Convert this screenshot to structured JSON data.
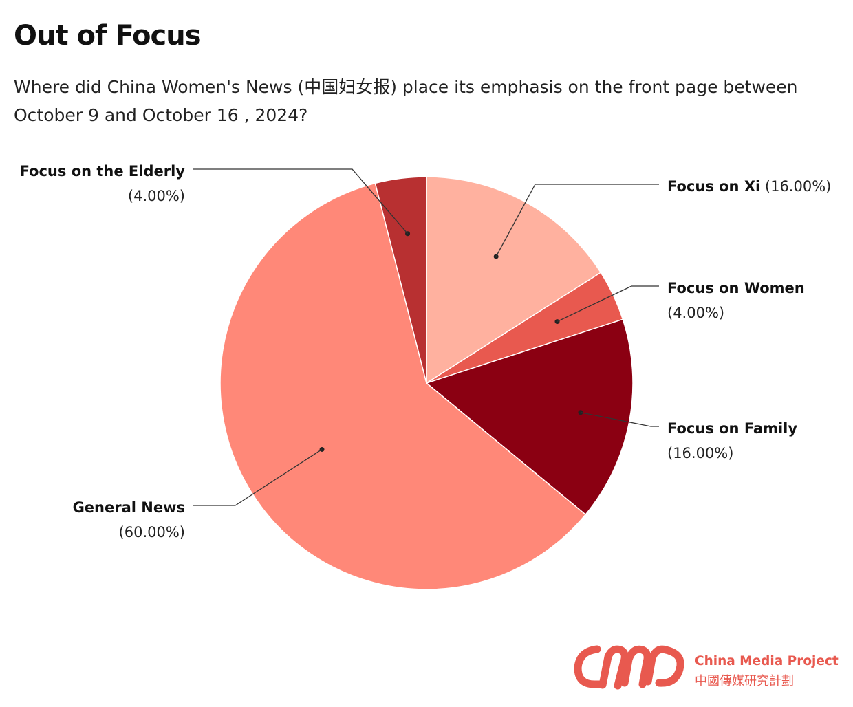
{
  "title": "Out of Focus",
  "subtitle": "Where did China Women's News (中国妇女报) place its emphasis on the front page between October 9 and October 16 , 2024?",
  "chart_data": {
    "type": "pie",
    "start": "12 o'clock, clockwise",
    "slices": [
      {
        "label": "Focus on Xi",
        "value": 16,
        "value_text": "(16.00%)",
        "color": "#ffb19f"
      },
      {
        "label": "Focus on Women",
        "value": 4,
        "value_text": "(4.00%)",
        "color": "#e8594f"
      },
      {
        "label": "Focus on Family",
        "value": 16,
        "value_text": "(16.00%)",
        "color": "#8b0012"
      },
      {
        "label": "General News",
        "value": 60,
        "value_text": "(60.00%)",
        "color": "#ff8878"
      },
      {
        "label": "Focus on the Elderly",
        "value": 4,
        "value_text": "(4.00%)",
        "color": "#b83031"
      }
    ]
  },
  "logo": {
    "name": "China Media Project",
    "name_cn": "中國傳媒研究計劃",
    "color": "#e8594f"
  }
}
